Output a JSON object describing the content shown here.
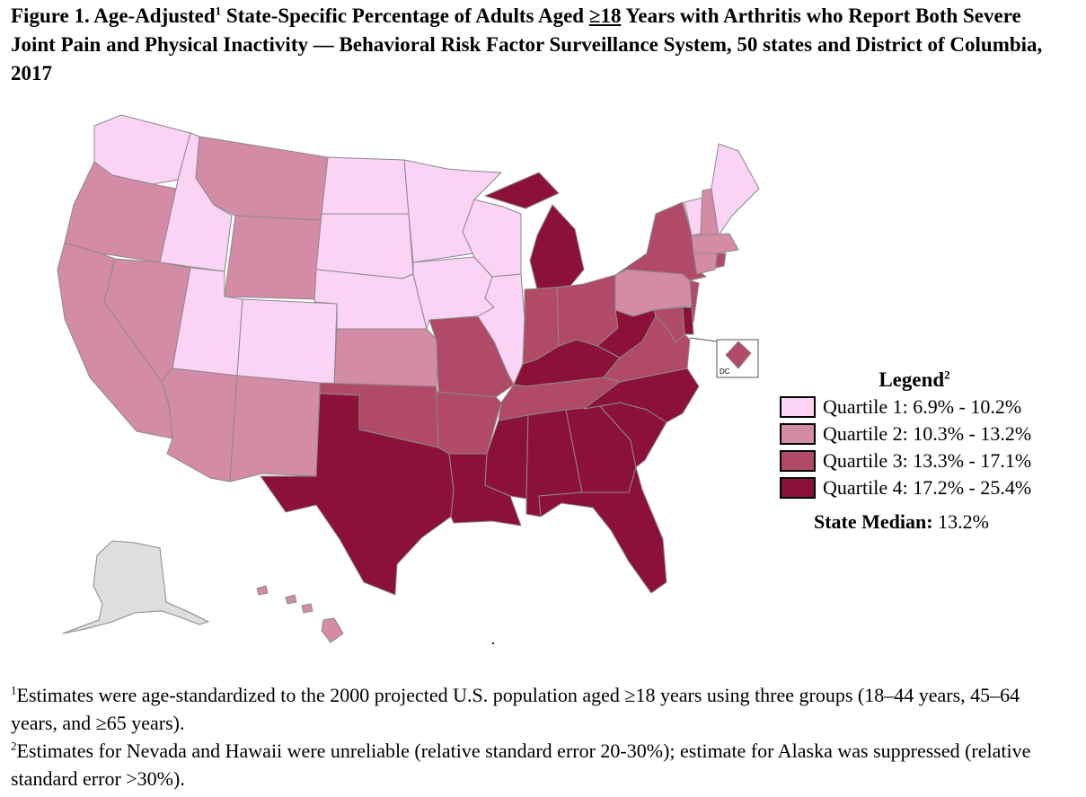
{
  "title": {
    "part1": "Figure 1. Age-Adjusted",
    "sup1": "1",
    "part2": " State-Specific Percentage of Adults Aged ",
    "ge18": "≥18",
    "part3": " Years with Arthritis who Report Both Severe Joint Pain and Physical Inactivity — Behavioral Risk Factor Surveillance System, 50 states and District of Columbia, 2017"
  },
  "colors": {
    "q1": "#fad3f5",
    "q2": "#d48ba6",
    "q3": "#b04a68",
    "q4": "#8c1139",
    "suppressed": "#dedede",
    "border": "#8a8a8a"
  },
  "map": {
    "dc_label": "DC"
  },
  "legend": {
    "title": "Legend",
    "title_sup": "2",
    "items": [
      {
        "label": "Quartile 1: 6.9% - 10.2%",
        "color_key": "q1"
      },
      {
        "label": "Quartile 2: 10.3% - 13.2%",
        "color_key": "q2"
      },
      {
        "label": "Quartile 3: 13.3% - 17.1%",
        "color_key": "q3"
      },
      {
        "label": "Quartile 4: 17.2% - 25.4%",
        "color_key": "q4"
      }
    ],
    "median_label": "State Median:",
    "median_value": " 13.2%"
  },
  "footnotes": {
    "fn1_sup": "1",
    "fn1_text": "Estimates were age-standardized to the 2000 projected U.S. population aged ≥18 years using three groups (18–44 years, 45–64 years, and ≥65 years).",
    "fn2_sup": "2",
    "fn2_text": "Estimates for Nevada and Hawaii were unreliable (relative standard error 20-30%); estimate for Alaska was suppressed (relative standard error >30%)."
  },
  "states": {
    "WA": "q1",
    "OR": "q2",
    "CA": "q2",
    "ID": "q1",
    "NV": "q2",
    "MT": "q2",
    "WY": "q2",
    "UT": "q1",
    "AZ": "q2",
    "CO": "q1",
    "NM": "q2",
    "ND": "q1",
    "SD": "q1",
    "NE": "q1",
    "KS": "q2",
    "OK": "q3",
    "TX": "q4",
    "MN": "q1",
    "IA": "q1",
    "MO": "q3",
    "AR": "q3",
    "LA": "q4",
    "WI": "q1",
    "IL": "q1",
    "MI": "q4",
    "IN": "q3",
    "OH": "q3",
    "KY": "q4",
    "TN": "q3",
    "MS": "q4",
    "AL": "q4",
    "GA": "q4",
    "FL": "q4",
    "SC": "q4",
    "NC": "q4",
    "VA": "q3",
    "WV": "q4",
    "PA": "q2",
    "NY": "q3",
    "VT": "q1",
    "NH": "q2",
    "ME": "q1",
    "MA": "q2",
    "CT": "q2",
    "RI": "q3",
    "NJ": "q3",
    "DE": "q4",
    "MD": "q3",
    "DC": "q3",
    "AK": "suppressed",
    "HI": "q2"
  }
}
